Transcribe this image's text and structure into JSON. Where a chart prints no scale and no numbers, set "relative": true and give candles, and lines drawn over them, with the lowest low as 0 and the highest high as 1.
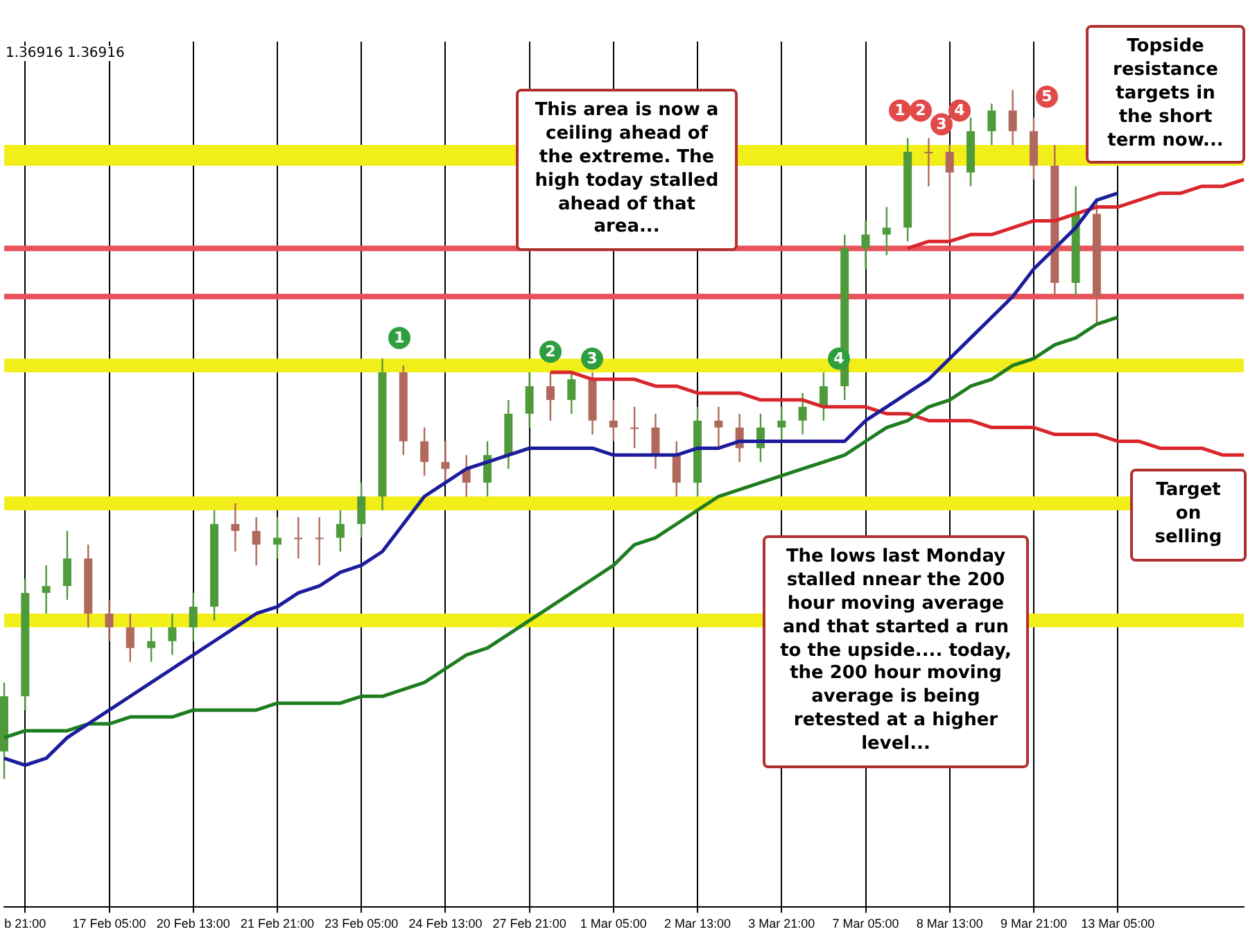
{
  "chart_data": {
    "type": "candlestick",
    "relative": true,
    "categories": [
      null,
      "b 21:00",
      null,
      null,
      null,
      "17 Feb 05:00",
      null,
      null,
      null,
      "20 Feb 13:00",
      null,
      null,
      null,
      "21 Feb 21:00",
      null,
      null,
      null,
      "23 Feb 05:00",
      null,
      null,
      null,
      "24 Feb 13:00",
      null,
      null,
      null,
      "27 Feb 21:00",
      null,
      null,
      null,
      "1 Mar 05:00",
      null,
      null,
      null,
      "2 Mar 13:00",
      null,
      null,
      null,
      "3 Mar 21:00",
      null,
      null,
      null,
      "7 Mar 05:00",
      null,
      null,
      null,
      "8 Mar 13:00",
      null,
      null,
      null,
      "9 Mar 21:00",
      null,
      null,
      null,
      "13 Mar 05:00",
      null,
      null,
      null,
      null,
      null,
      null
    ],
    "ohlc": [
      [
        0.04,
        0.14,
        0.0,
        0.12
      ],
      [
        0.12,
        0.29,
        0.1,
        0.27
      ],
      [
        0.27,
        0.31,
        0.24,
        0.28
      ],
      [
        0.28,
        0.36,
        0.26,
        0.32
      ],
      [
        0.32,
        0.34,
        0.22,
        0.24
      ],
      [
        0.24,
        0.26,
        0.2,
        0.22
      ],
      [
        0.22,
        0.24,
        0.17,
        0.19
      ],
      [
        0.19,
        0.22,
        0.17,
        0.2
      ],
      [
        0.2,
        0.24,
        0.18,
        0.22
      ],
      [
        0.22,
        0.27,
        0.2,
        0.25
      ],
      [
        0.25,
        0.39,
        0.23,
        0.37
      ],
      [
        0.37,
        0.4,
        0.33,
        0.36
      ],
      [
        0.36,
        0.38,
        0.31,
        0.34
      ],
      [
        0.34,
        0.38,
        0.32,
        0.35
      ],
      [
        0.35,
        0.38,
        0.32,
        0.35
      ],
      [
        0.35,
        0.38,
        0.31,
        0.35
      ],
      [
        0.35,
        0.39,
        0.33,
        0.37
      ],
      [
        0.37,
        0.43,
        0.35,
        0.41
      ],
      [
        0.41,
        0.61,
        0.39,
        0.59
      ],
      [
        0.59,
        0.6,
        0.47,
        0.49
      ],
      [
        0.49,
        0.51,
        0.44,
        0.46
      ],
      [
        0.46,
        0.49,
        0.43,
        0.45
      ],
      [
        0.45,
        0.47,
        0.41,
        0.43
      ],
      [
        0.43,
        0.49,
        0.41,
        0.47
      ],
      [
        0.47,
        0.55,
        0.45,
        0.53
      ],
      [
        0.53,
        0.59,
        0.51,
        0.57
      ],
      [
        0.57,
        0.59,
        0.52,
        0.55
      ],
      [
        0.55,
        0.59,
        0.53,
        0.58
      ],
      [
        0.58,
        0.59,
        0.5,
        0.52
      ],
      [
        0.52,
        0.55,
        0.49,
        0.51
      ],
      [
        0.51,
        0.54,
        0.48,
        0.51
      ],
      [
        0.51,
        0.53,
        0.45,
        0.47
      ],
      [
        0.47,
        0.49,
        0.41,
        0.43
      ],
      [
        0.43,
        0.54,
        0.41,
        0.52
      ],
      [
        0.52,
        0.54,
        0.48,
        0.51
      ],
      [
        0.51,
        0.53,
        0.46,
        0.48
      ],
      [
        0.48,
        0.53,
        0.46,
        0.51
      ],
      [
        0.51,
        0.54,
        0.49,
        0.52
      ],
      [
        0.52,
        0.56,
        0.5,
        0.54
      ],
      [
        0.54,
        0.59,
        0.52,
        0.57
      ],
      [
        0.57,
        0.79,
        0.55,
        0.77
      ],
      [
        0.77,
        0.81,
        0.74,
        0.79
      ],
      [
        0.79,
        0.83,
        0.76,
        0.8
      ],
      [
        0.8,
        0.93,
        0.78,
        0.91
      ],
      [
        0.91,
        0.93,
        0.86,
        0.91
      ],
      [
        0.91,
        0.92,
        0.78,
        0.88
      ],
      [
        0.88,
        0.96,
        0.86,
        0.94
      ],
      [
        0.94,
        0.98,
        0.92,
        0.97
      ],
      [
        0.97,
        1.0,
        0.92,
        0.94
      ],
      [
        0.94,
        0.96,
        0.87,
        0.89
      ],
      [
        0.89,
        0.92,
        0.7,
        0.72
      ],
      [
        0.72,
        0.86,
        0.7,
        0.82
      ],
      [
        0.82,
        0.84,
        0.66,
        0.7
      ],
      null,
      null,
      null,
      null,
      null,
      null,
      null
    ],
    "colors": [
      "#4f9a3a",
      "#4f9a3a",
      "#4f9a3a",
      "#4f9a3a",
      "#b0695c",
      "#b0695c",
      "#b0695c",
      "#4f9a3a",
      "#4f9a3a",
      "#4f9a3a",
      "#4f9a3a",
      "#b0695c",
      "#b0695c",
      "#4f9a3a",
      "#b0695c",
      "#b0695c",
      "#4f9a3a",
      "#4f9a3a",
      "#4f9a3a",
      "#b0695c",
      "#b0695c",
      "#b0695c",
      "#b0695c",
      "#4f9a3a",
      "#4f9a3a",
      "#4f9a3a",
      "#b0695c",
      "#4f9a3a",
      "#b0695c",
      "#b0695c",
      "#b0695c",
      "#b0695c",
      "#b0695c",
      "#4f9a3a",
      "#b0695c",
      "#b0695c",
      "#4f9a3a",
      "#4f9a3a",
      "#4f9a3a",
      "#4f9a3a",
      "#4f9a3a",
      "#4f9a3a",
      "#4f9a3a",
      "#4f9a3a",
      "#b0695c",
      "#b0695c",
      "#4f9a3a",
      "#4f9a3a",
      "#b0695c",
      "#b0695c",
      "#b0695c",
      "#4f9a3a",
      "#b0695c",
      null,
      null,
      null,
      null,
      null,
      null,
      null
    ],
    "series": [
      {
        "type": "line",
        "color": "#1c1c9c",
        "values": [
          0.03,
          0.02,
          0.03,
          0.06,
          0.08,
          0.1,
          0.12,
          0.14,
          0.16,
          0.18,
          0.2,
          0.22,
          0.24,
          0.25,
          0.27,
          0.28,
          0.3,
          0.31,
          0.33,
          0.37,
          0.41,
          0.43,
          0.45,
          0.46,
          0.47,
          0.48,
          0.48,
          0.48,
          0.48,
          0.47,
          0.47,
          0.47,
          0.47,
          0.48,
          0.48,
          0.49,
          0.49,
          0.49,
          0.49,
          0.49,
          0.49,
          0.52,
          0.54,
          0.56,
          0.58,
          0.61,
          0.64,
          0.67,
          0.7,
          0.74,
          0.77,
          0.8,
          0.84,
          0.85,
          null,
          null,
          null,
          null,
          null,
          null
        ]
      },
      {
        "type": "line",
        "color": "#1e7d1e",
        "values": [
          0.06,
          0.07,
          0.07,
          0.07,
          0.08,
          0.08,
          0.09,
          0.09,
          0.09,
          0.1,
          0.1,
          0.1,
          0.1,
          0.11,
          0.11,
          0.11,
          0.11,
          0.12,
          0.12,
          0.13,
          0.14,
          0.16,
          0.18,
          0.19,
          0.21,
          0.23,
          0.25,
          0.27,
          0.29,
          0.31,
          0.34,
          0.35,
          0.37,
          0.39,
          0.41,
          0.42,
          0.43,
          0.44,
          0.45,
          0.46,
          0.47,
          0.49,
          0.51,
          0.52,
          0.54,
          0.55,
          0.57,
          0.58,
          0.6,
          0.61,
          0.63,
          0.64,
          0.66,
          0.67,
          null,
          null,
          null,
          null,
          null,
          null
        ]
      },
      {
        "type": "line",
        "color": "#d9262c",
        "values": [
          null,
          null,
          null,
          null,
          null,
          null,
          null,
          null,
          null,
          null,
          null,
          null,
          null,
          null,
          null,
          null,
          null,
          null,
          null,
          null,
          null,
          null,
          null,
          null,
          null,
          null,
          0.59,
          0.59,
          0.58,
          0.58,
          0.58,
          0.57,
          0.57,
          0.56,
          0.56,
          0.56,
          0.55,
          0.55,
          0.55,
          0.54,
          0.54,
          0.54,
          0.53,
          0.53,
          0.52,
          0.52,
          0.52,
          0.51,
          0.51,
          0.51,
          0.5,
          0.5,
          0.5,
          0.49,
          0.49,
          0.48,
          0.48,
          0.48,
          0.47,
          0.47
        ]
      },
      {
        "type": "line",
        "color": "#d9262c",
        "values": [
          null,
          null,
          null,
          null,
          null,
          null,
          null,
          null,
          null,
          null,
          null,
          null,
          null,
          null,
          null,
          null,
          null,
          null,
          null,
          null,
          null,
          null,
          null,
          null,
          null,
          null,
          null,
          null,
          null,
          null,
          null,
          null,
          null,
          null,
          null,
          null,
          null,
          null,
          null,
          null,
          null,
          null,
          null,
          0.77,
          0.78,
          0.78,
          0.79,
          0.79,
          0.8,
          0.81,
          0.81,
          0.82,
          0.83,
          0.83,
          0.84,
          0.85,
          0.85,
          0.86,
          0.86,
          0.87
        ]
      }
    ],
    "bands": [
      {
        "axis": "y",
        "from": 0.89,
        "to": 0.92,
        "color": "#f2ee1a"
      },
      {
        "axis": "y",
        "from": 0.59,
        "to": 0.61,
        "color": "#f2ee1a"
      },
      {
        "axis": "y",
        "from": 0.39,
        "to": 0.41,
        "color": "#f2ee1a"
      },
      {
        "axis": "y",
        "from": 0.22,
        "to": 0.24,
        "color": "#f2ee1a"
      }
    ],
    "ref_lines": [
      {
        "axis": "y",
        "value": 0.77,
        "color": "#e8525a"
      },
      {
        "axis": "y",
        "value": 0.7,
        "color": "#e8525a"
      }
    ],
    "grid": "x",
    "legend": false,
    "annotations": [
      "1.36916 1.36916",
      "This area is now a ceiling ahead of the extreme.  The high today stalled ahead of that area...",
      "Topside resistance targets in the short term now...",
      "The lows last Monday stalled nnear the 200 hour moving average and that started a run to the upside.... today, the 200 hour moving average is being retested at a higher level...",
      "Target on selling",
      {
        "text": "1",
        "y": 0.64
      },
      {
        "text": "2",
        "y": 0.62
      },
      {
        "text": "3",
        "y": 0.61
      },
      {
        "text": "4",
        "y": 0.61
      },
      {
        "text": "1",
        "y": 0.97
      },
      {
        "text": "2",
        "y": 0.97
      },
      {
        "text": "3",
        "y": 0.95
      },
      {
        "text": "4",
        "y": 0.97
      },
      {
        "text": "5",
        "y": 0.99
      }
    ]
  }
}
